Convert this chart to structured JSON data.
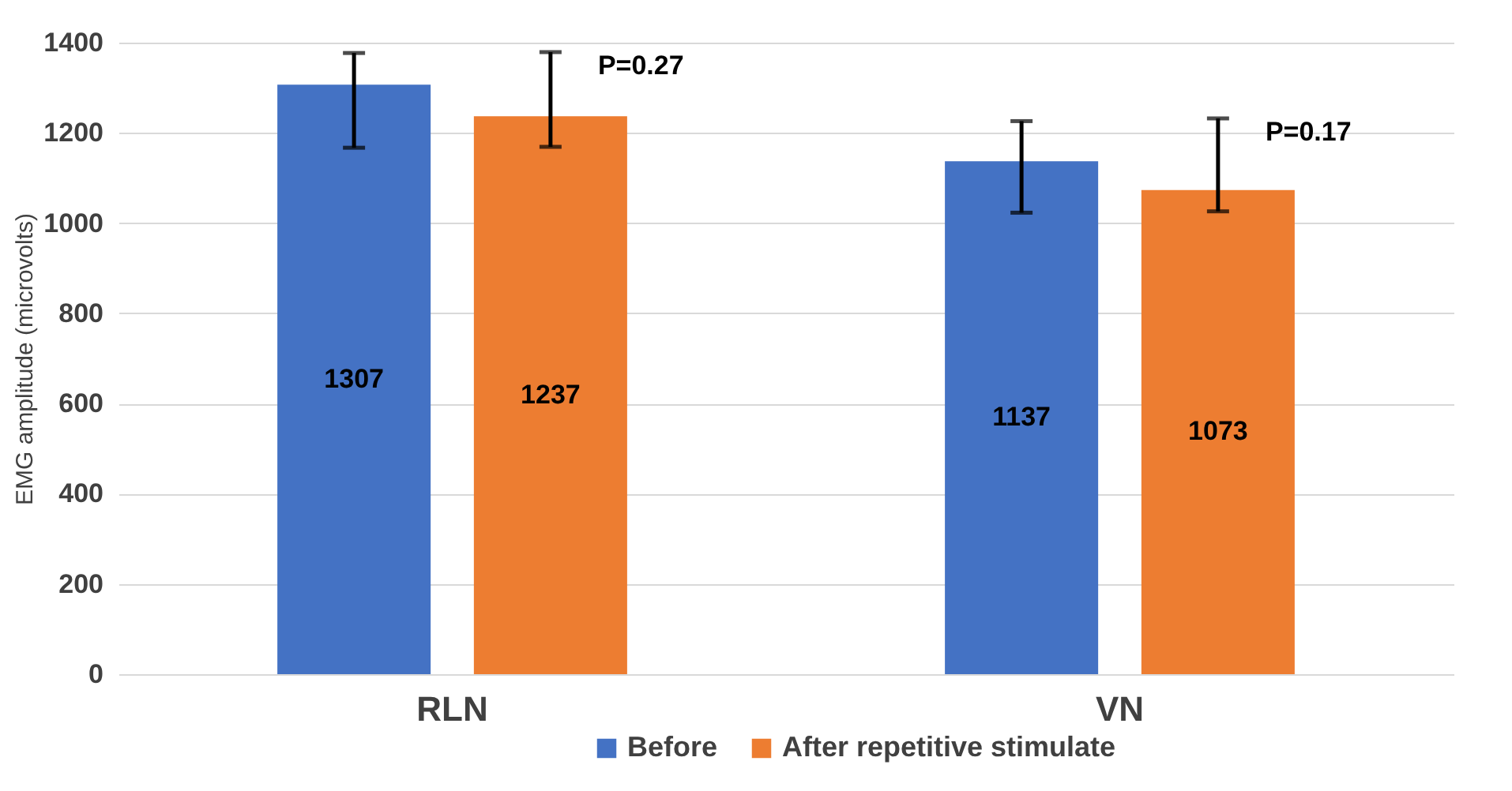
{
  "chart_data": {
    "type": "bar",
    "ylabel": "EMG amplitude (microvolts)",
    "categories": [
      "RLN",
      "VN"
    ],
    "series": [
      {
        "name": "Before",
        "color": "#4472c4",
        "values": [
          1307,
          1137
        ],
        "errors": [
          [
            1167,
            1377
          ],
          [
            1023,
            1226
          ]
        ]
      },
      {
        "name": "After repetitive stimulate",
        "color": "#ed7d31",
        "values": [
          1237,
          1073
        ],
        "errors": [
          [
            1169,
            1379
          ],
          [
            1026,
            1232
          ]
        ]
      }
    ],
    "ylim": [
      0,
      1400
    ],
    "yticks": [
      0,
      200,
      400,
      600,
      800,
      1000,
      1200,
      1400
    ],
    "grid": "y",
    "legend": "bottom",
    "data_labels": true,
    "annotations": [
      "P=0.27",
      "P=0.17"
    ]
  }
}
